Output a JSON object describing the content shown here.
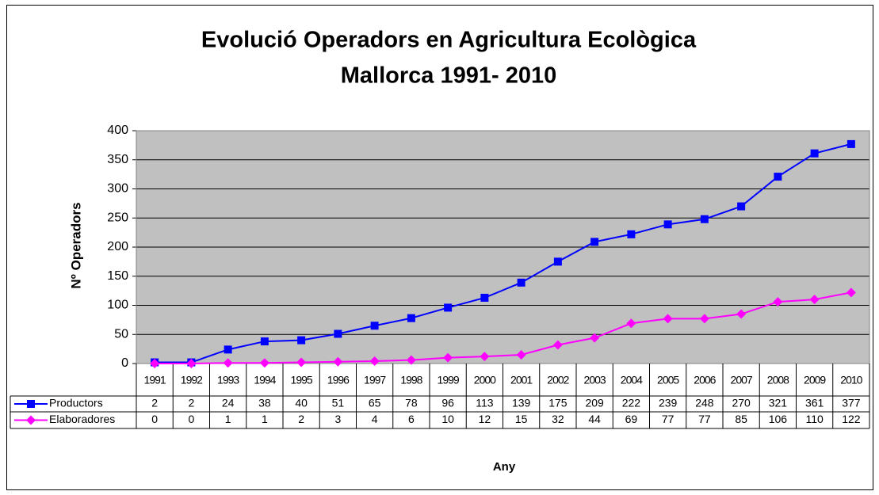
{
  "chart_data": {
    "type": "line",
    "title": "Evolució Operadors en Agricultura Ecològica",
    "subtitle": "Mallorca 1991- 2010",
    "x_label": "Any",
    "y_label": "Nº Operadors",
    "categories": [
      "1991",
      "1992",
      "1993",
      "1994",
      "1995",
      "1996",
      "1997",
      "1998",
      "1999",
      "2000",
      "2001",
      "2002",
      "2003",
      "2004",
      "2005",
      "2006",
      "2007",
      "2008",
      "2009",
      "2010"
    ],
    "series": [
      {
        "name": "Productors",
        "color": "#0000ff",
        "marker": "square",
        "values": [
          2,
          2,
          24,
          38,
          40,
          51,
          65,
          78,
          96,
          113,
          139,
          175,
          209,
          222,
          239,
          248,
          270,
          321,
          361,
          377
        ]
      },
      {
        "name": "Elaboradores",
        "color": "#ff00ff",
        "marker": "diamond",
        "values": [
          0,
          0,
          1,
          1,
          2,
          3,
          4,
          6,
          10,
          12,
          15,
          32,
          44,
          69,
          77,
          77,
          85,
          106,
          110,
          122
        ]
      }
    ],
    "ylim": [
      0,
      400
    ],
    "yticks": [
      0,
      50,
      100,
      150,
      200,
      250,
      300,
      350,
      400
    ],
    "grid": true
  }
}
